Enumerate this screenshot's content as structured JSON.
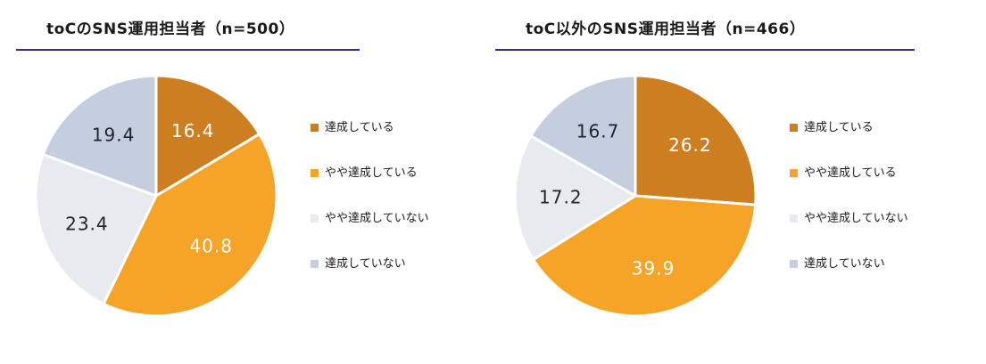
{
  "accent_color": "#2d2e82",
  "background_color": "#ffffff",
  "legend_text_color": "#1a1a1a",
  "chart_data": [
    {
      "type": "pie",
      "title": "toCのSNS運用担当者（n=500）",
      "labels": [
        "達成している",
        "やや達成している",
        "やや達成していない",
        "達成していない"
      ],
      "values": [
        16.4,
        40.8,
        23.4,
        19.4
      ],
      "colors": [
        "#cd7e20",
        "#f5a428",
        "#e7eaef",
        "#c4cedf"
      ],
      "value_label_colors": [
        "#ffffff",
        "#ffffff",
        "#20242e",
        "#20242e"
      ],
      "start_angle_deg": 0,
      "direction": "clockwise",
      "legend_position": "right"
    },
    {
      "type": "pie",
      "title": "toC以外のSNS運用担当者（n=466）",
      "labels": [
        "達成している",
        "やや達成している",
        "やや達成していない",
        "達成していない"
      ],
      "values": [
        26.2,
        39.9,
        17.2,
        16.7
      ],
      "colors": [
        "#cd7e20",
        "#f5a428",
        "#e7eaef",
        "#c4cedf"
      ],
      "value_label_colors": [
        "#ffffff",
        "#ffffff",
        "#20242e",
        "#20242e"
      ],
      "start_angle_deg": 0,
      "direction": "clockwise",
      "legend_position": "right"
    }
  ]
}
